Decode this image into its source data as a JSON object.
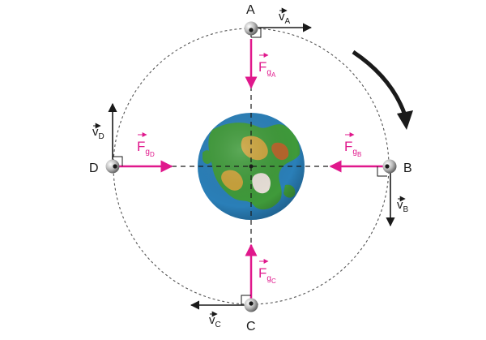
{
  "points": {
    "A": {
      "label": "A"
    },
    "B": {
      "label": "B"
    },
    "C": {
      "label": "C"
    },
    "D": {
      "label": "D"
    }
  },
  "velocity_labels": {
    "A": {
      "main": "v",
      "sub": "A"
    },
    "B": {
      "main": "v",
      "sub": "B"
    },
    "C": {
      "main": "v",
      "sub": "C"
    },
    "D": {
      "main": "v",
      "sub": "D"
    }
  },
  "force_labels": {
    "A": {
      "main": "F",
      "sub": "g",
      "subsub": "A"
    },
    "B": {
      "main": "F",
      "sub": "g",
      "subsub": "B"
    },
    "C": {
      "main": "F",
      "sub": "g",
      "subsub": "C"
    },
    "D": {
      "main": "F",
      "sub": "g",
      "subsub": "D"
    }
  },
  "colors": {
    "force": "#e0188c",
    "velocity": "#1a1a1a",
    "orbit": "#555555",
    "ocean": "#2a7fb8",
    "land": "#3f9a3a"
  },
  "icons": {
    "planet": "earth-globe",
    "satellite": "satellite-sphere",
    "rotation": "clockwise-curved-arrow"
  }
}
